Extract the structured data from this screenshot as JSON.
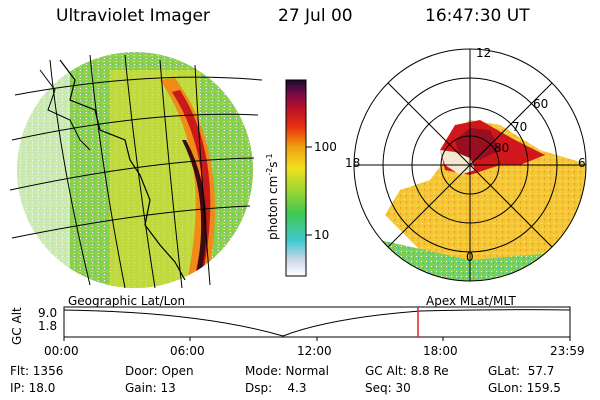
{
  "header": {
    "instrument": "Ultraviolet Imager",
    "date": "27 Jul 00",
    "time": "16:47:30 UT"
  },
  "colorbar": {
    "unit_label": "photon cm",
    "unit_exp1": "-2",
    "unit_s": "s",
    "unit_exp2": "-1",
    "ticks": [
      "100",
      "10"
    ]
  },
  "polar_plot": {
    "mlt_labels": {
      "top": "12",
      "left": "18",
      "right": "6",
      "bottom": "0"
    },
    "lat_labels": [
      "60",
      "70",
      "80"
    ]
  },
  "projection_labels": {
    "left": "Geographic Lat/Lon",
    "right": "Apex MLat/MLT"
  },
  "altitude_strip": {
    "axis_label": "GC Alt",
    "y_ticks": [
      "9.0",
      "1.8"
    ],
    "x_ticks": [
      "00:00",
      "06:00",
      "12:00",
      "18:00",
      "23:59"
    ],
    "current_time_marker_hours": 16.79,
    "marker_color": "#e02020"
  },
  "status": {
    "flt": "Flt: 1356",
    "ip": "IP: 18.0",
    "door": "Door: Open",
    "gain": "Gain: 13",
    "mode": "Mode: Normal",
    "dsp": "Dsp:    4.3",
    "gc_alt": "GC Alt: 8.8 Re",
    "seq": "Seq: 30",
    "glat": "GLat:  57.7",
    "glon": "GLon: 159.5"
  }
}
